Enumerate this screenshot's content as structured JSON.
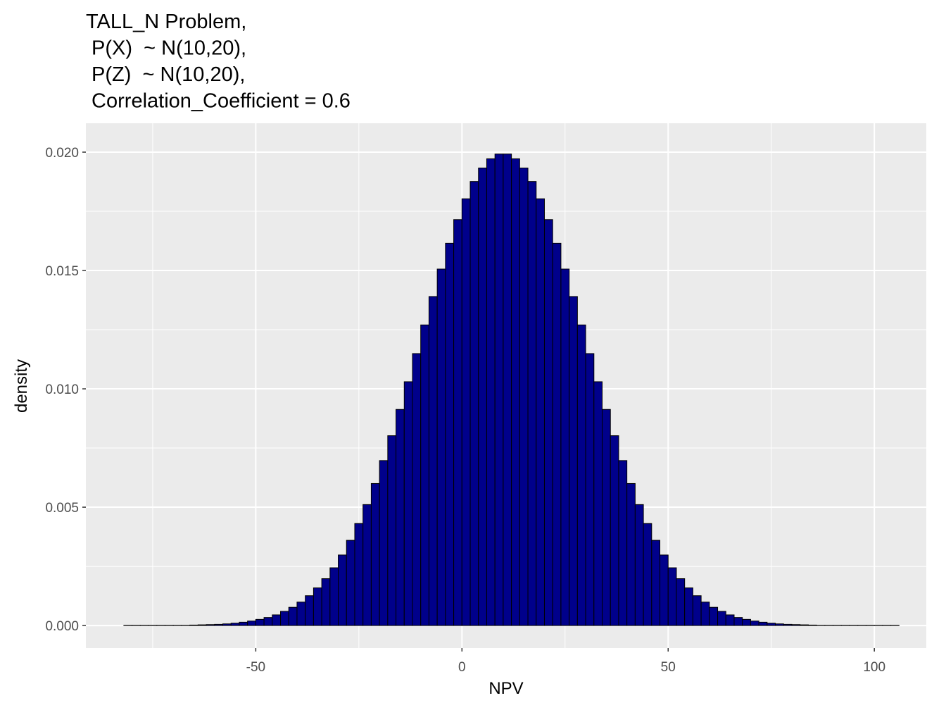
{
  "chart_data": {
    "type": "histogram",
    "title": [
      "TALL_N Problem,",
      " P(X)  ~ N(10,20),",
      " P(Z)  ~ N(10,20),",
      " Correlation_Coefficient = 0.6"
    ],
    "x_label": "NPV",
    "y_label": "density",
    "bins": [
      -82,
      -80,
      -78,
      -76,
      -74,
      -72,
      -70,
      -68,
      -66,
      -64,
      -62,
      -60,
      -58,
      -56,
      -54,
      -52,
      -50,
      -48,
      -46,
      -44,
      -42,
      -40,
      -38,
      -36,
      -34,
      -32,
      -30,
      -28,
      -26,
      -24,
      -22,
      -20,
      -18,
      -16,
      -14,
      -12,
      -10,
      -8,
      -6,
      -4,
      -2,
      0,
      2,
      4,
      6,
      8,
      10,
      12,
      14,
      16,
      18,
      20,
      22,
      24,
      26,
      28,
      30,
      32,
      34,
      36,
      38,
      40,
      42,
      44,
      46,
      48,
      50,
      52,
      54,
      56,
      58,
      60,
      62,
      64,
      66,
      68,
      70,
      72,
      74,
      76,
      78,
      80,
      82,
      84,
      86,
      88,
      90,
      92,
      94,
      96,
      98,
      100,
      102,
      104,
      106
    ],
    "values": [
      1e-05,
      1e-05,
      1e-05,
      1e-05,
      1e-05,
      1e-05,
      1e-05,
      1e-05,
      2e-05,
      3e-05,
      4e-05,
      5e-05,
      7e-05,
      0.0001,
      0.00014,
      0.00019,
      0.00026,
      0.00034,
      0.00045,
      0.0006,
      0.00077,
      0.00099,
      0.00126,
      0.00159,
      0.00198,
      0.00244,
      0.00298,
      0.0036,
      0.00431,
      0.00511,
      0.006,
      0.00697,
      0.00802,
      0.00913,
      0.0103,
      0.01149,
      0.0127,
      0.0139,
      0.01506,
      0.01615,
      0.01715,
      0.01803,
      0.01876,
      0.01933,
      0.01972,
      0.01992,
      0.01992,
      0.01972,
      0.01933,
      0.01876,
      0.01803,
      0.01715,
      0.01615,
      0.01506,
      0.0139,
      0.0127,
      0.01149,
      0.0103,
      0.00913,
      0.00802,
      0.00697,
      0.006,
      0.00511,
      0.00431,
      0.0036,
      0.00298,
      0.00244,
      0.00198,
      0.00159,
      0.00126,
      0.00099,
      0.00077,
      0.0006,
      0.00045,
      0.00034,
      0.00026,
      0.00019,
      0.00014,
      0.0001,
      7e-05,
      5e-05,
      4e-05,
      3e-05,
      2e-05,
      1e-05,
      1e-05,
      1e-05,
      1e-05,
      1e-05,
      1e-05,
      1e-05,
      1e-05,
      1e-05,
      1e-05
    ],
    "color": "#00008b",
    "edgecolor": "#000000",
    "xlim": [
      -91.2,
      112.6
    ],
    "ylim": [
      -0.00095,
      0.02122
    ],
    "xticks": [
      -50,
      0,
      50,
      100
    ],
    "yticks": [
      {
        "value": 0,
        "label": "0.000"
      },
      {
        "value": 0.005,
        "label": "0.005"
      },
      {
        "value": 0.01,
        "label": "0.010"
      },
      {
        "value": 0.015,
        "label": "0.015"
      },
      {
        "value": 0.02,
        "label": "0.020"
      }
    ],
    "grid": true
  }
}
